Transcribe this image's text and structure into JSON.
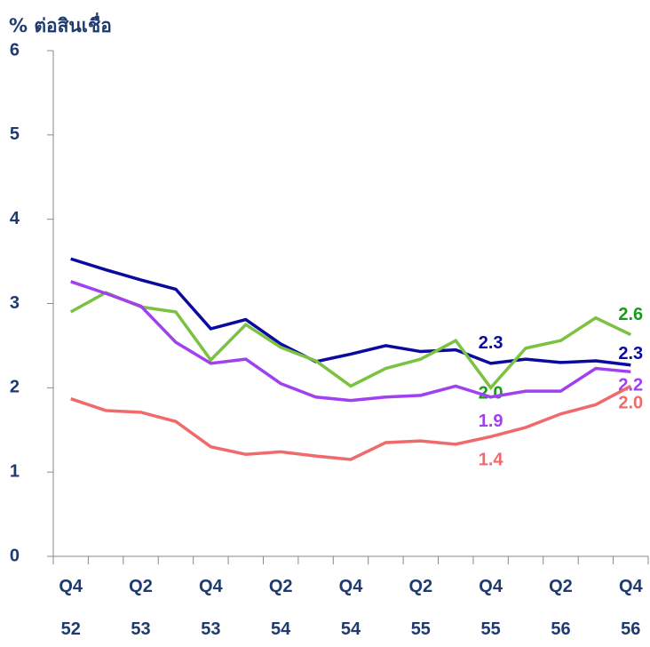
{
  "chart_data": {
    "type": "line",
    "title": "% ต่อสินเชื่อ",
    "categories": [
      "Q4\n52",
      null,
      "Q2\n53",
      null,
      "Q4\n53",
      null,
      "Q2\n54",
      null,
      "Q4\n54",
      null,
      "Q2\n55",
      null,
      "Q4\n55",
      null,
      "Q2\n56",
      null,
      "Q4\n56"
    ],
    "series": [
      {
        "color": "#0a0aa0",
        "values": [
          3.53,
          3.4,
          3.28,
          3.17,
          2.7,
          2.81,
          2.52,
          2.31,
          2.4,
          2.5,
          2.43,
          2.45,
          2.29,
          2.34,
          2.3,
          2.32,
          2.27
        ],
        "value_labels": [
          null,
          null,
          null,
          null,
          null,
          null,
          null,
          null,
          null,
          null,
          null,
          null,
          "2.3",
          null,
          null,
          null,
          "2.3"
        ]
      },
      {
        "color": "#7cc242",
        "values": [
          2.9,
          3.13,
          2.96,
          2.9,
          2.33,
          2.75,
          2.48,
          2.32,
          2.02,
          2.23,
          2.34,
          2.56,
          2.0,
          2.47,
          2.56,
          2.83,
          2.63
        ],
        "value_labels": [
          null,
          null,
          null,
          null,
          null,
          null,
          null,
          null,
          null,
          null,
          null,
          null,
          "2.0",
          null,
          null,
          null,
          "2.6"
        ]
      },
      {
        "color": "#a040f0",
        "values": [
          3.26,
          3.12,
          2.97,
          2.54,
          2.29,
          2.34,
          2.05,
          1.89,
          1.85,
          1.89,
          1.91,
          2.02,
          1.89,
          1.96,
          1.96,
          2.23,
          2.19
        ],
        "value_labels": [
          null,
          null,
          null,
          null,
          null,
          null,
          null,
          null,
          null,
          null,
          null,
          null,
          "1.9",
          null,
          null,
          null,
          "2.2"
        ]
      },
      {
        "color": "#f06a6c",
        "values": [
          1.87,
          1.73,
          1.71,
          1.6,
          1.3,
          1.21,
          1.24,
          1.19,
          1.15,
          1.35,
          1.37,
          1.33,
          1.42,
          1.53,
          1.69,
          1.8,
          2.02
        ],
        "value_labels": [
          null,
          null,
          null,
          null,
          null,
          null,
          null,
          null,
          null,
          null,
          null,
          null,
          "1.4",
          null,
          null,
          null,
          "2.0"
        ]
      }
    ],
    "label_colors": [
      "#0a0aa0",
      "#1a9a1a",
      "#a040f0",
      "#f06a6c"
    ],
    "ylim": [
      0,
      6
    ],
    "yticks": [
      0,
      1,
      2,
      3,
      4,
      5,
      6
    ]
  }
}
